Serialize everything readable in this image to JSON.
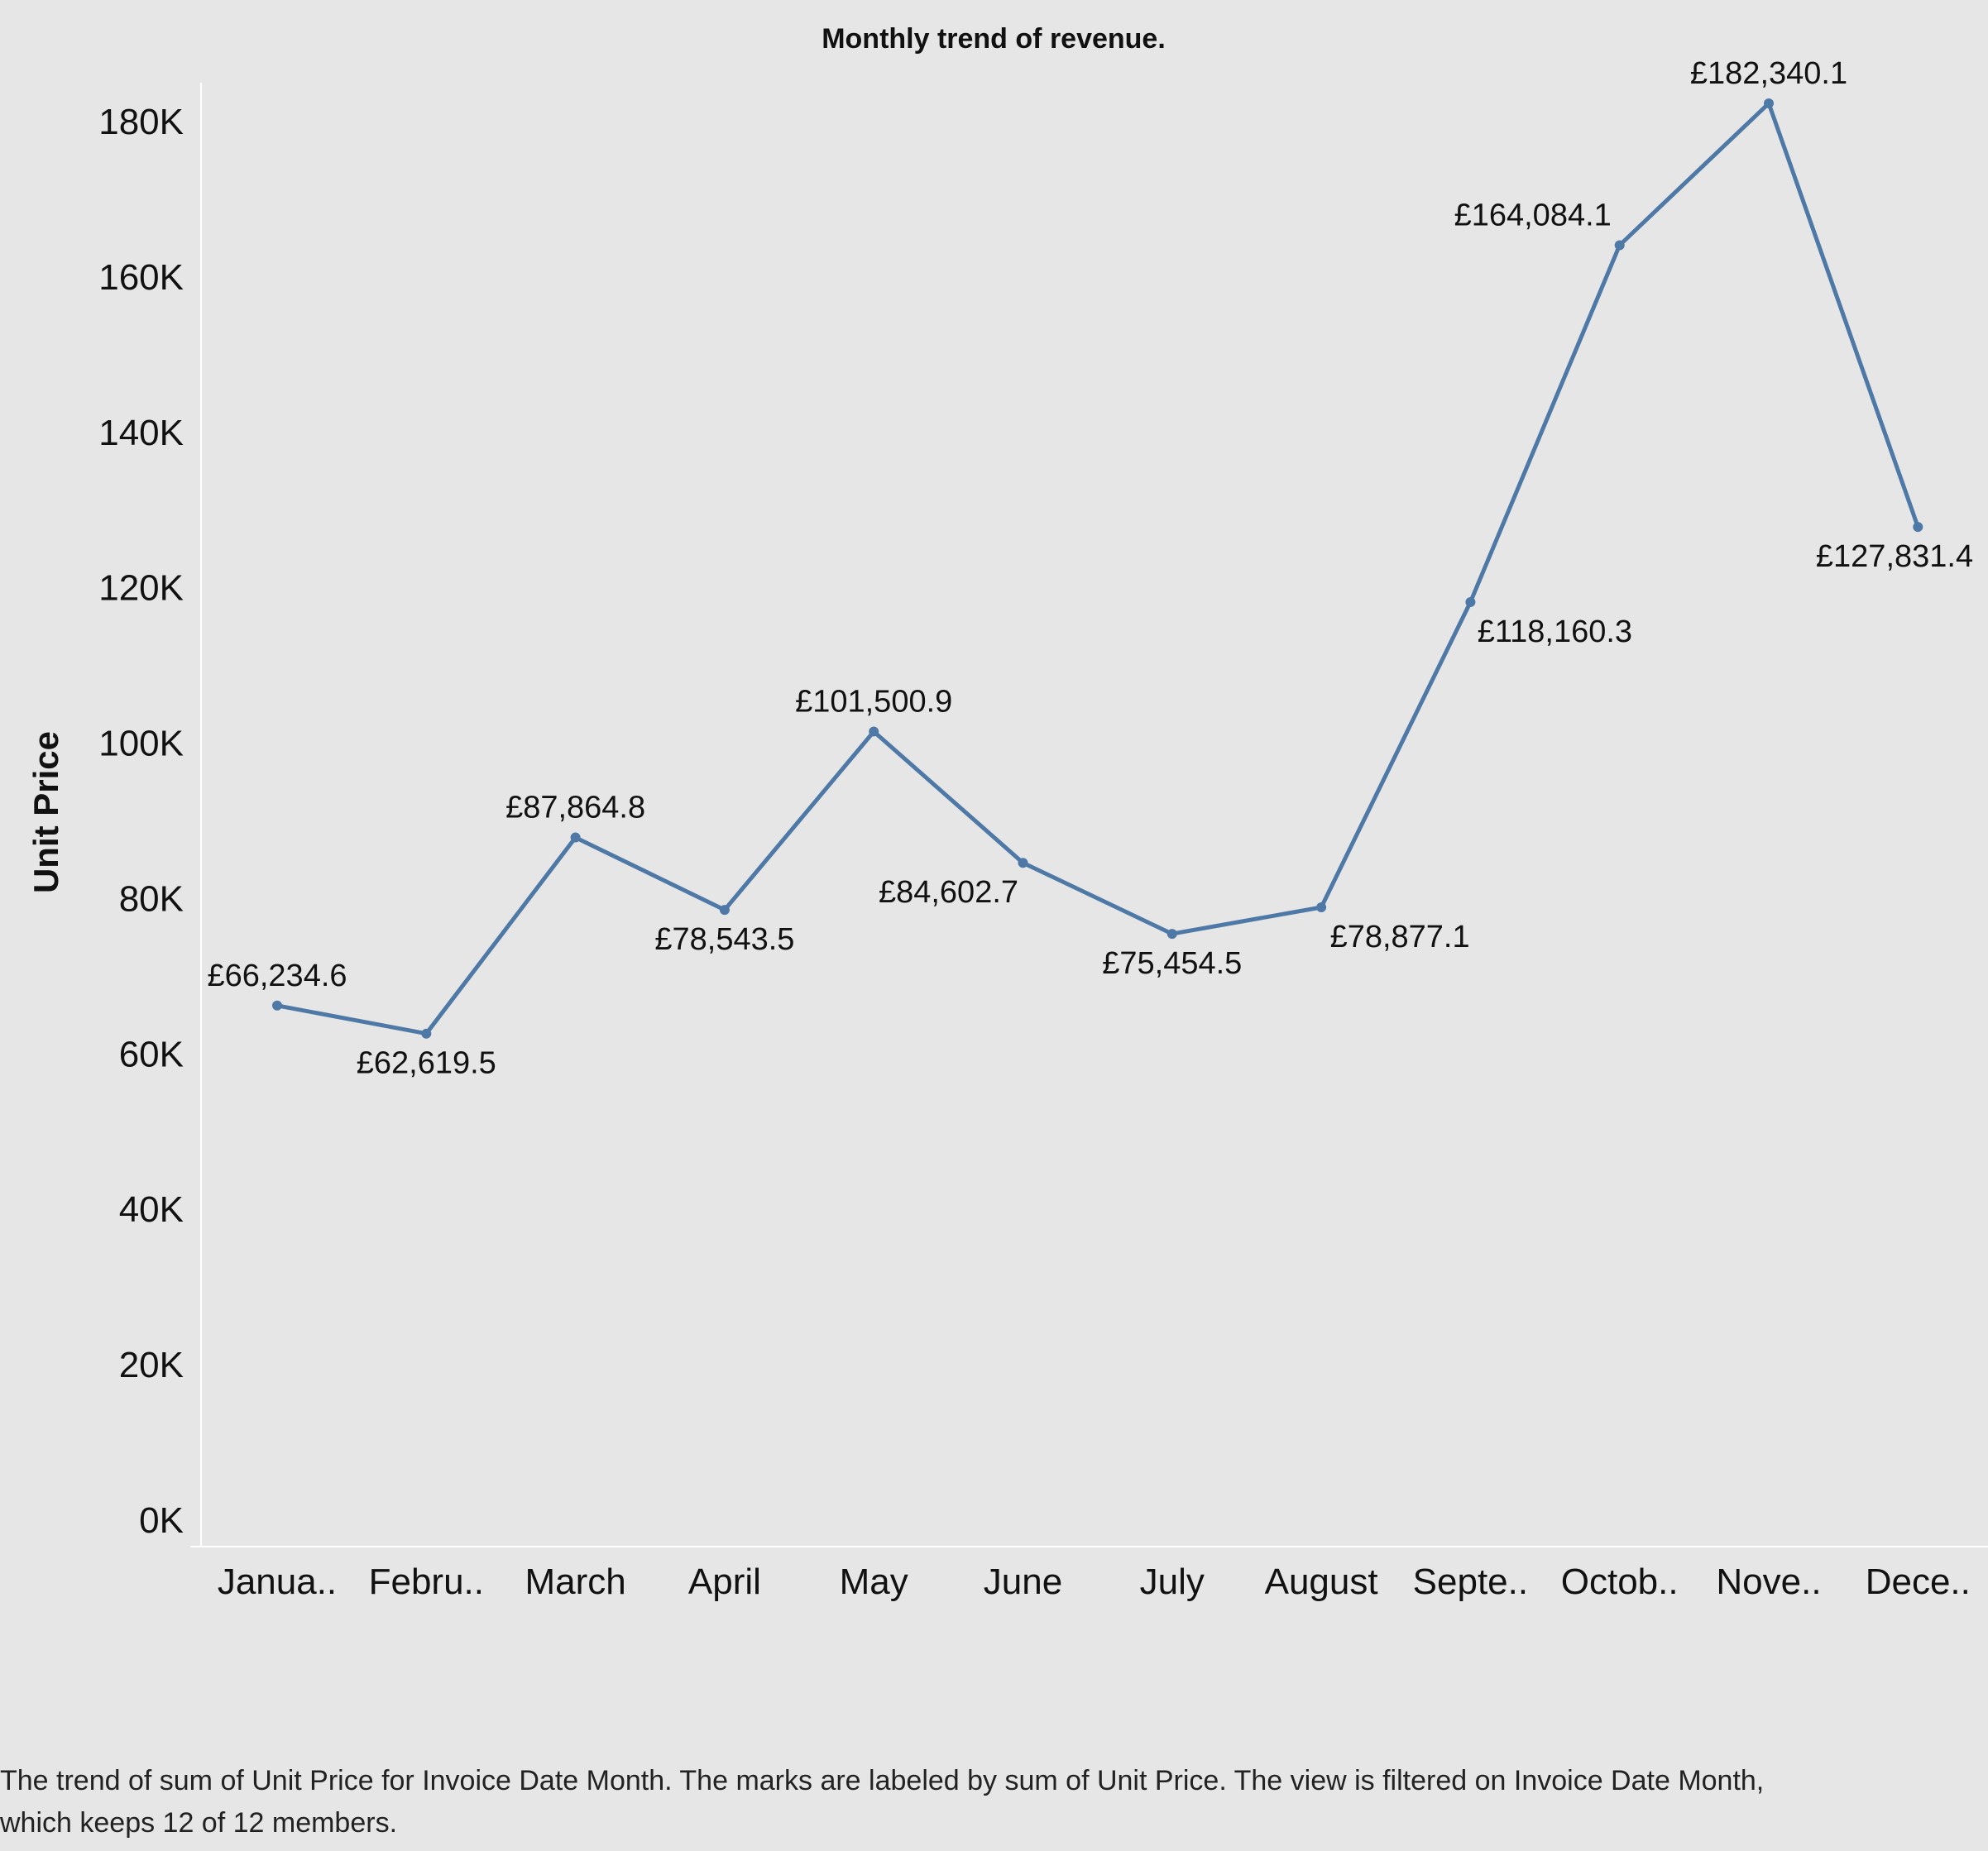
{
  "colors": {
    "background": "#e6e6e6",
    "line": "#4e79a7",
    "axis": "#ffffff",
    "text": "#111111"
  },
  "chart_data": {
    "type": "line",
    "title": "Monthly trend of revenue.",
    "xlabel": "",
    "ylabel": "Unit Price",
    "ylim": [
      0,
      190000
    ],
    "yticks": [
      0,
      20000,
      40000,
      60000,
      80000,
      100000,
      120000,
      140000,
      160000,
      180000
    ],
    "ytick_labels": [
      "0K",
      "20K",
      "40K",
      "60K",
      "80K",
      "100K",
      "120K",
      "140K",
      "160K",
      "180K"
    ],
    "categories": [
      "Janua..",
      "Febru..",
      "March",
      "April",
      "May",
      "June",
      "July",
      "August",
      "Septe..",
      "Octob..",
      "Nove..",
      "Dece.."
    ],
    "series": [
      {
        "name": "Unit Price",
        "values": [
          66234.6,
          62619.5,
          87864.8,
          78543.5,
          101500.9,
          84602.7,
          75454.5,
          78877.1,
          118160.3,
          164084.1,
          182340.1,
          127831.4
        ],
        "labels": [
          "£66,234.6",
          "£62,619.5",
          "£87,864.8",
          "£78,543.5",
          "£101,500.9",
          "£84,602.7",
          "£75,454.5",
          "£78,877.1",
          "£118,160.3",
          "£164,084.1",
          "£182,340.1",
          "£127,831.4"
        ]
      }
    ],
    "grid": false,
    "legend": "none"
  },
  "caption": {
    "line1": "The trend of sum of Unit Price for Invoice Date Month.  The marks are labeled by sum of Unit Price. The view is filtered on Invoice Date Month,",
    "line2": "which keeps 12 of 12 members."
  }
}
